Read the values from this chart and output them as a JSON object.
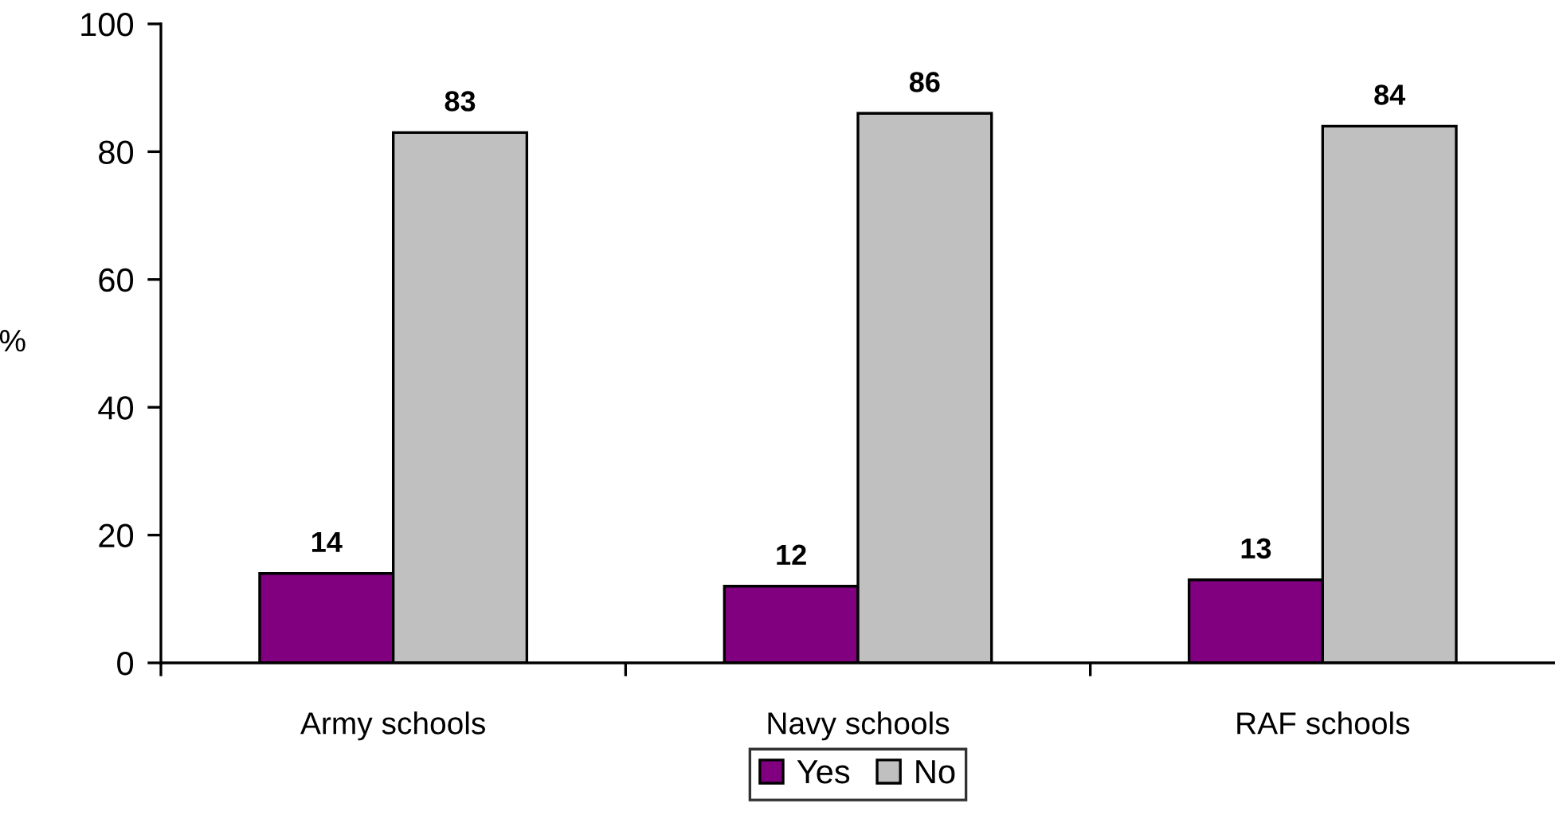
{
  "chart_data": {
    "type": "bar",
    "ylabel": "%",
    "categories": [
      "Army schools",
      "Navy schools",
      "RAF schools"
    ],
    "series": [
      {
        "name": "Yes",
        "color": "#800080",
        "values": [
          14,
          12,
          13
        ]
      },
      {
        "name": "No",
        "color": "#c0c0c0",
        "values": [
          83,
          86,
          84
        ]
      }
    ],
    "ylim": [
      0,
      100
    ],
    "yticks": [
      0,
      20,
      40,
      60,
      80,
      100
    ],
    "data_labels": true,
    "grid": false,
    "legend": "bottom"
  }
}
